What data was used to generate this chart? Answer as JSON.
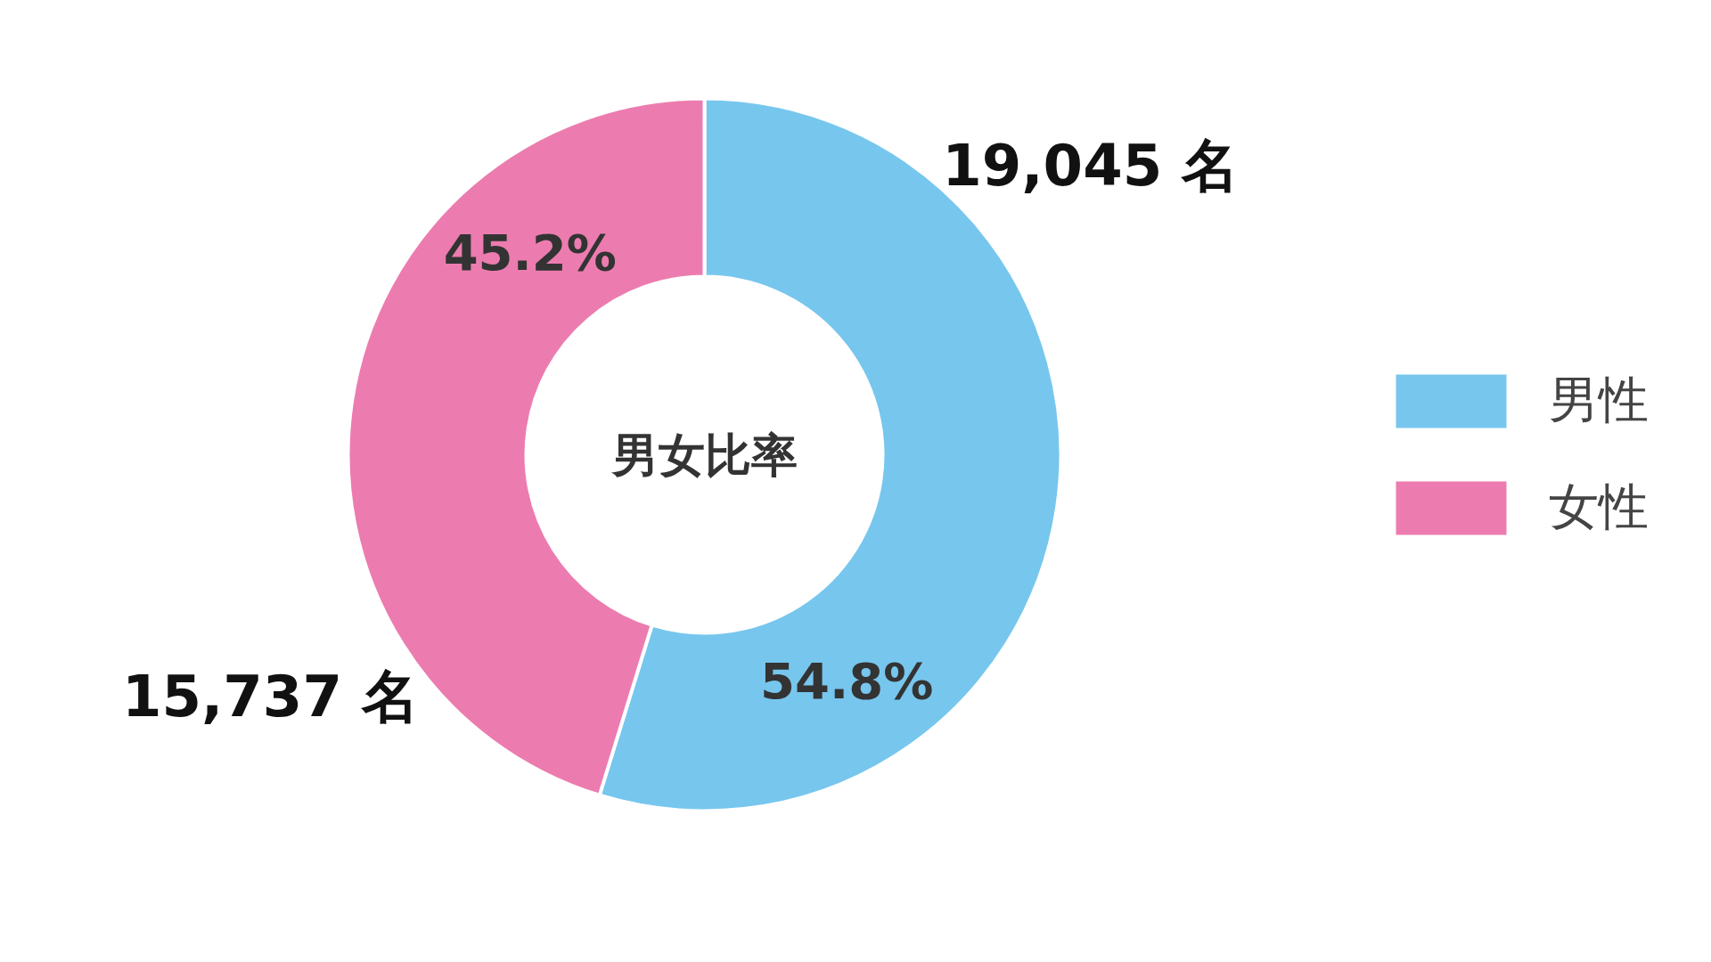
{
  "chart_data": {
    "type": "donut",
    "title": "男女比率",
    "categories": [
      "男性",
      "女性"
    ],
    "values": [
      19045,
      15737
    ],
    "value_labels": [
      "19,045 名",
      "15,737 名"
    ],
    "annotations": [
      "54.8%",
      "45.2%"
    ],
    "colors": [
      "#77c6ee",
      "#ec7caf"
    ],
    "legend": "right"
  }
}
